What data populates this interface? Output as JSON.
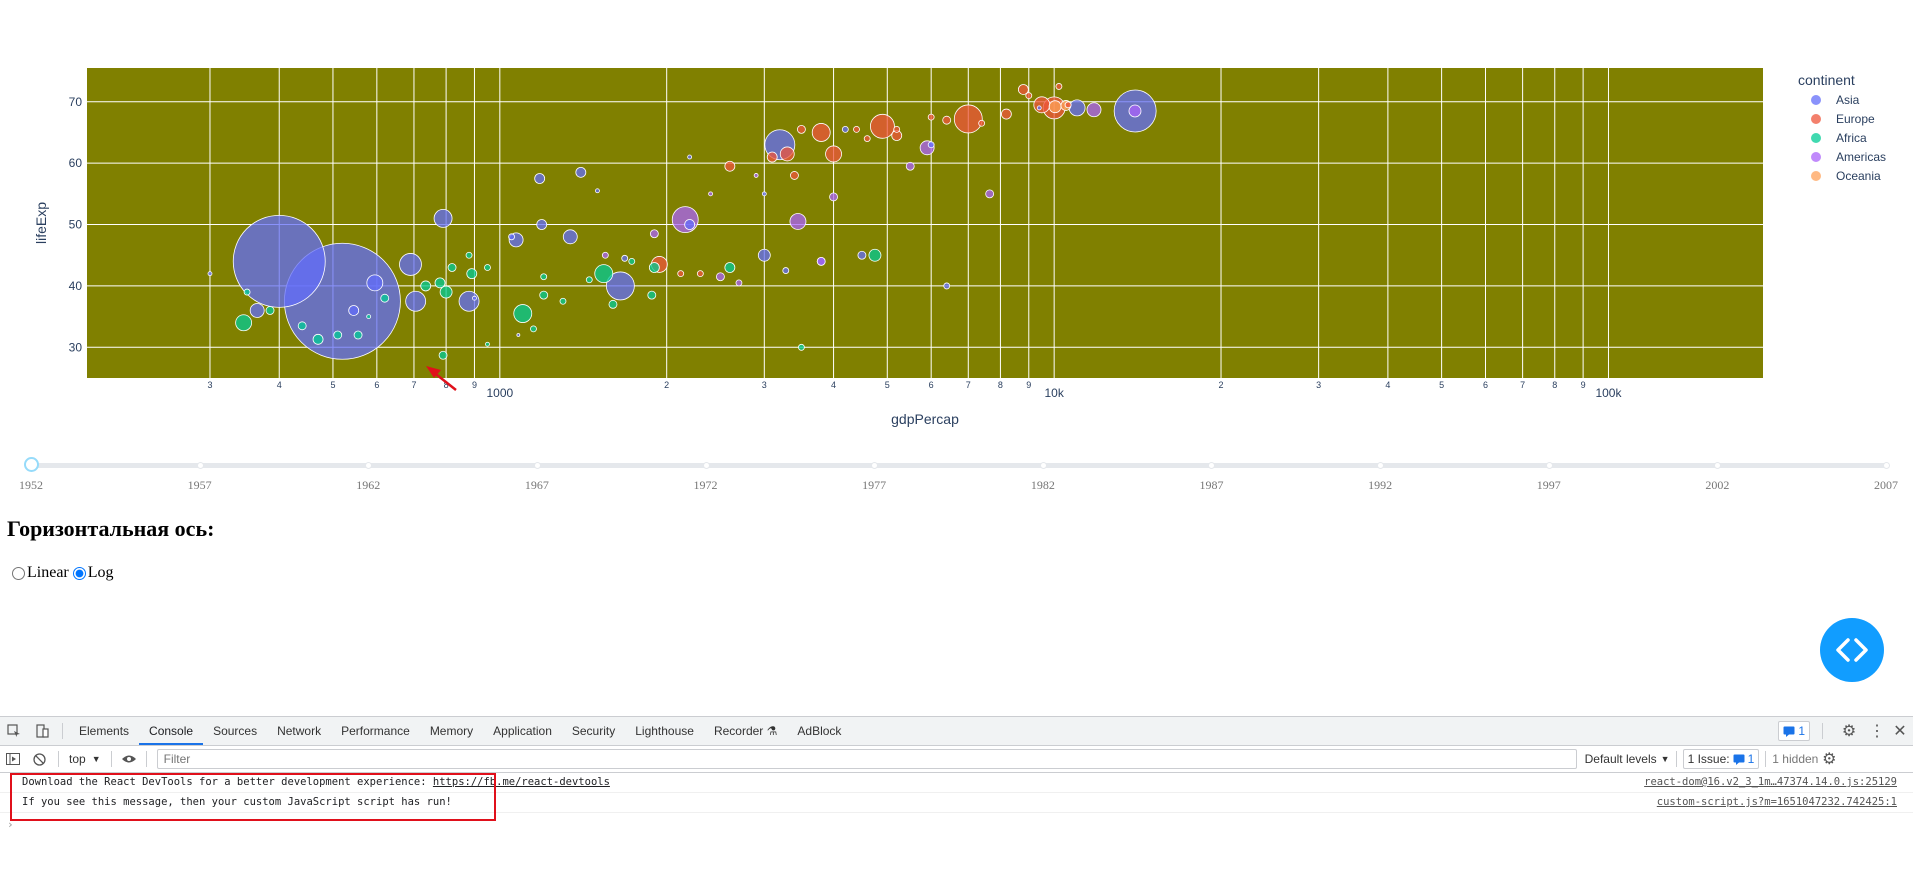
{
  "chart_data": {
    "type": "scatter",
    "subtype": "bubble",
    "xlabel": "gdpPercap",
    "ylabel": "lifeExp",
    "x_scale": "log",
    "x_range": [
      180,
      190000
    ],
    "y_range": [
      25,
      75.5
    ],
    "plot_bgcolor": "#808000",
    "grid": true,
    "x_tick_labels": [
      {
        "value": 300,
        "label": "3"
      },
      {
        "value": 400,
        "label": "4"
      },
      {
        "value": 500,
        "label": "5"
      },
      {
        "value": 600,
        "label": "6"
      },
      {
        "value": 700,
        "label": "7"
      },
      {
        "value": 800,
        "label": "8"
      },
      {
        "value": 900,
        "label": "9"
      },
      {
        "value": 1000,
        "label": "1000"
      },
      {
        "value": 2000,
        "label": "2"
      },
      {
        "value": 3000,
        "label": "3"
      },
      {
        "value": 4000,
        "label": "4"
      },
      {
        "value": 5000,
        "label": "5"
      },
      {
        "value": 6000,
        "label": "6"
      },
      {
        "value": 7000,
        "label": "7"
      },
      {
        "value": 8000,
        "label": "8"
      },
      {
        "value": 9000,
        "label": "9"
      },
      {
        "value": 10000,
        "label": "10k"
      },
      {
        "value": 20000,
        "label": "2"
      },
      {
        "value": 30000,
        "label": "3"
      },
      {
        "value": 40000,
        "label": "4"
      },
      {
        "value": 50000,
        "label": "5"
      },
      {
        "value": 60000,
        "label": "6"
      },
      {
        "value": 70000,
        "label": "7"
      },
      {
        "value": 80000,
        "label": "8"
      },
      {
        "value": 90000,
        "label": "9"
      },
      {
        "value": 100000,
        "label": "100k"
      }
    ],
    "y_ticks": [
      30,
      40,
      50,
      60,
      70
    ],
    "legend": {
      "title": "continent",
      "placement": "top-right",
      "entries": [
        {
          "name": "Asia",
          "color": "#636efa"
        },
        {
          "name": "Europe",
          "color": "#ef553b"
        },
        {
          "name": "Africa",
          "color": "#00cc96"
        },
        {
          "name": "Americas",
          "color": "#ab63fa"
        },
        {
          "name": "Oceania",
          "color": "#ffa15a"
        }
      ]
    },
    "series": [
      {
        "name": "Asia",
        "color": "#636efa",
        "points": [
          [
            400,
            44,
            46
          ],
          [
            520,
            37.5,
            58
          ],
          [
            1650,
            40,
            14
          ],
          [
            1080,
            32,
            0
          ],
          [
            690,
            43.5,
            11
          ],
          [
            705,
            37.5,
            10
          ],
          [
            880,
            37.5,
            10
          ],
          [
            790,
            51,
            9
          ],
          [
            595,
            40.5,
            8
          ],
          [
            365,
            36,
            7
          ],
          [
            545,
            36,
            5
          ],
          [
            2200,
            50,
            5
          ],
          [
            1070,
            47.5,
            7
          ],
          [
            1340,
            48,
            7
          ],
          [
            1190,
            50,
            5
          ],
          [
            1180,
            57.5,
            5
          ],
          [
            1400,
            58.5,
            5
          ],
          [
            3200,
            63,
            15
          ],
          [
            3000,
            45,
            6
          ],
          [
            3280,
            42.5,
            3
          ],
          [
            1680,
            44.5,
            3
          ],
          [
            6400,
            40,
            3
          ],
          [
            4500,
            45,
            4
          ],
          [
            1500,
            55.5,
            2
          ],
          [
            2200,
            61,
            2
          ],
          [
            3000,
            55,
            2
          ],
          [
            4200,
            65.5,
            3
          ],
          [
            9400,
            69,
            2
          ],
          [
            3800,
            44,
            4
          ],
          [
            6000,
            63,
            3
          ],
          [
            900,
            38,
            2
          ],
          [
            1050,
            48,
            3
          ],
          [
            300,
            42,
            2
          ],
          [
            14000,
            68.5,
            21
          ],
          [
            11000,
            69,
            8
          ]
        ]
      },
      {
        "name": "Europe",
        "color": "#ef553b",
        "points": [
          [
            3300,
            61.5,
            7
          ],
          [
            3800,
            65,
            9
          ],
          [
            4000,
            61.5,
            8
          ],
          [
            3100,
            61,
            5
          ],
          [
            3400,
            58,
            4
          ],
          [
            3500,
            65.5,
            4
          ],
          [
            4900,
            66,
            12
          ],
          [
            5200,
            64.5,
            5
          ],
          [
            6400,
            67,
            4
          ],
          [
            7000,
            67.2,
            14
          ],
          [
            8200,
            68,
            5
          ],
          [
            8800,
            72,
            5
          ],
          [
            9500,
            69.5,
            8
          ],
          [
            10000,
            69,
            11
          ],
          [
            10200,
            72.5,
            3
          ],
          [
            2600,
            59.5,
            5
          ],
          [
            1940,
            43.5,
            8
          ],
          [
            2120,
            42,
            3
          ],
          [
            2300,
            42,
            3
          ],
          [
            4600,
            64,
            3
          ],
          [
            5200,
            65.5,
            3
          ],
          [
            7400,
            66.5,
            3
          ],
          [
            9000,
            71,
            3
          ],
          [
            10600,
            69.5,
            3
          ],
          [
            6000,
            67.5,
            3
          ],
          [
            4400,
            65.5,
            3
          ]
        ]
      },
      {
        "name": "Africa",
        "color": "#00cc96",
        "points": [
          [
            345,
            34,
            8
          ],
          [
            385,
            36,
            4
          ],
          [
            470,
            31.3,
            5
          ],
          [
            510,
            32,
            4
          ],
          [
            555,
            32,
            4
          ],
          [
            440,
            33.5,
            4
          ],
          [
            620,
            38,
            4
          ],
          [
            735,
            40,
            5
          ],
          [
            780,
            40.5,
            5
          ],
          [
            800,
            39,
            6
          ],
          [
            890,
            42,
            5
          ],
          [
            880,
            45,
            3
          ],
          [
            790,
            28.7,
            4
          ],
          [
            820,
            43,
            4
          ],
          [
            1100,
            35.5,
            9
          ],
          [
            1200,
            38.5,
            4
          ],
          [
            1300,
            37.5,
            3
          ],
          [
            1540,
            42,
            9
          ],
          [
            1600,
            37,
            4
          ],
          [
            1730,
            44,
            3
          ],
          [
            1900,
            43,
            5
          ],
          [
            1880,
            38.5,
            4
          ],
          [
            2600,
            43,
            5
          ],
          [
            3500,
            30,
            3
          ],
          [
            4750,
            45,
            6
          ],
          [
            1150,
            33,
            3
          ],
          [
            1450,
            41,
            3
          ],
          [
            350,
            39,
            3
          ],
          [
            580,
            35,
            2
          ],
          [
            950,
            43,
            3
          ],
          [
            1200,
            41.5,
            3
          ],
          [
            950,
            30.5,
            2
          ]
        ]
      },
      {
        "name": "Americas",
        "color": "#ab63fa",
        "points": [
          [
            2160,
            50.8,
            13
          ],
          [
            3450,
            50.5,
            8
          ],
          [
            5900,
            62.5,
            7
          ],
          [
            7650,
            55,
            4
          ],
          [
            4000,
            54.5,
            4
          ],
          [
            2700,
            40.5,
            3
          ],
          [
            1900,
            48.5,
            4
          ],
          [
            2500,
            41.5,
            4
          ],
          [
            3800,
            44,
            4
          ],
          [
            5500,
            59.5,
            4
          ],
          [
            2900,
            58,
            2
          ],
          [
            1550,
            45,
            3
          ],
          [
            2400,
            55,
            2
          ],
          [
            13990,
            68.5,
            6
          ],
          [
            11800,
            68.7,
            7
          ]
        ]
      },
      {
        "name": "Oceania",
        "color": "#ffa15a",
        "points": [
          [
            10040,
            69.2,
            6
          ],
          [
            10500,
            69.4,
            5
          ]
        ]
      }
    ],
    "annotation": "red-arrow pointing to Africa point near (790, 28.7)"
  },
  "slider": {
    "years": [
      "1952",
      "1957",
      "1962",
      "1967",
      "1972",
      "1977",
      "1982",
      "1987",
      "1992",
      "1997",
      "2002",
      "2007"
    ],
    "current": "1952"
  },
  "controls": {
    "heading": "Горизонтальная ось:",
    "options": [
      {
        "label": "Linear",
        "checked": false
      },
      {
        "label": "Log",
        "checked": true
      }
    ]
  },
  "devtools": {
    "tabs": [
      "Elements",
      "Console",
      "Sources",
      "Network",
      "Performance",
      "Memory",
      "Application",
      "Security",
      "Lighthouse",
      "Recorder",
      "AdBlock"
    ],
    "active_tab": "Console",
    "issues_badge": "1",
    "context": "top",
    "filter_placeholder": "Filter",
    "levels": "Default levels",
    "issues_label": "1 Issue:",
    "issues_count": "1",
    "hidden_label": "1 hidden",
    "messages": [
      {
        "text_before": "Download the React DevTools for a better development experience: ",
        "link": "https://fb.me/react-devtools",
        "source": "react-dom@16.v2_3_1m…47374.14.0.js:25129"
      },
      {
        "text_before": "If you see this message, then your custom JavaScript script has run!",
        "link": "",
        "source": "custom-script.js?m=1651047232.742425:1"
      }
    ],
    "prompt": "›"
  }
}
